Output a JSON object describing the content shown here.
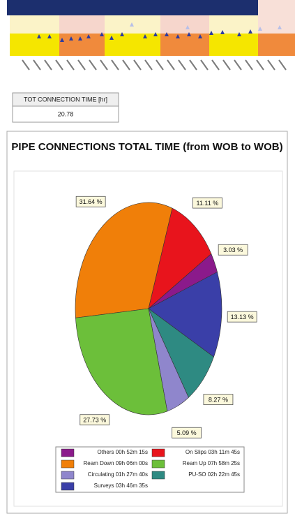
{
  "summary_table": {
    "header": "TOT CONNECTION TIME [hr]",
    "value": 20.78
  },
  "chart_data": {
    "type": "pie",
    "title": "PIPE CONNECTIONS TOTAL TIME (from WOB to WOB)",
    "categories": [
      "Ream Down 09h 06m 00s",
      "On Slips 03h 11m 45s",
      "Others 00h 52m 15s",
      "Surveys 03h 46m 35s",
      "PU-SO 02h 22m 45s",
      "Circulating 01h 27m 40s",
      "Ream Up 07h 58m 25s"
    ],
    "values": [
      31.64,
      11.11,
      3.03,
      13.13,
      8.27,
      5.09,
      27.73
    ],
    "value_labels": [
      "31.64 %",
      "11.11 %",
      "3.03 %",
      "13.13 %",
      "8.27 %",
      "5.09 %",
      "27.73 %"
    ],
    "colors": [
      "#f07f09",
      "#e8141c",
      "#8b1a8b",
      "#3a3fa8",
      "#2e8a82",
      "#8f86cc",
      "#6cbf3a"
    ]
  }
}
